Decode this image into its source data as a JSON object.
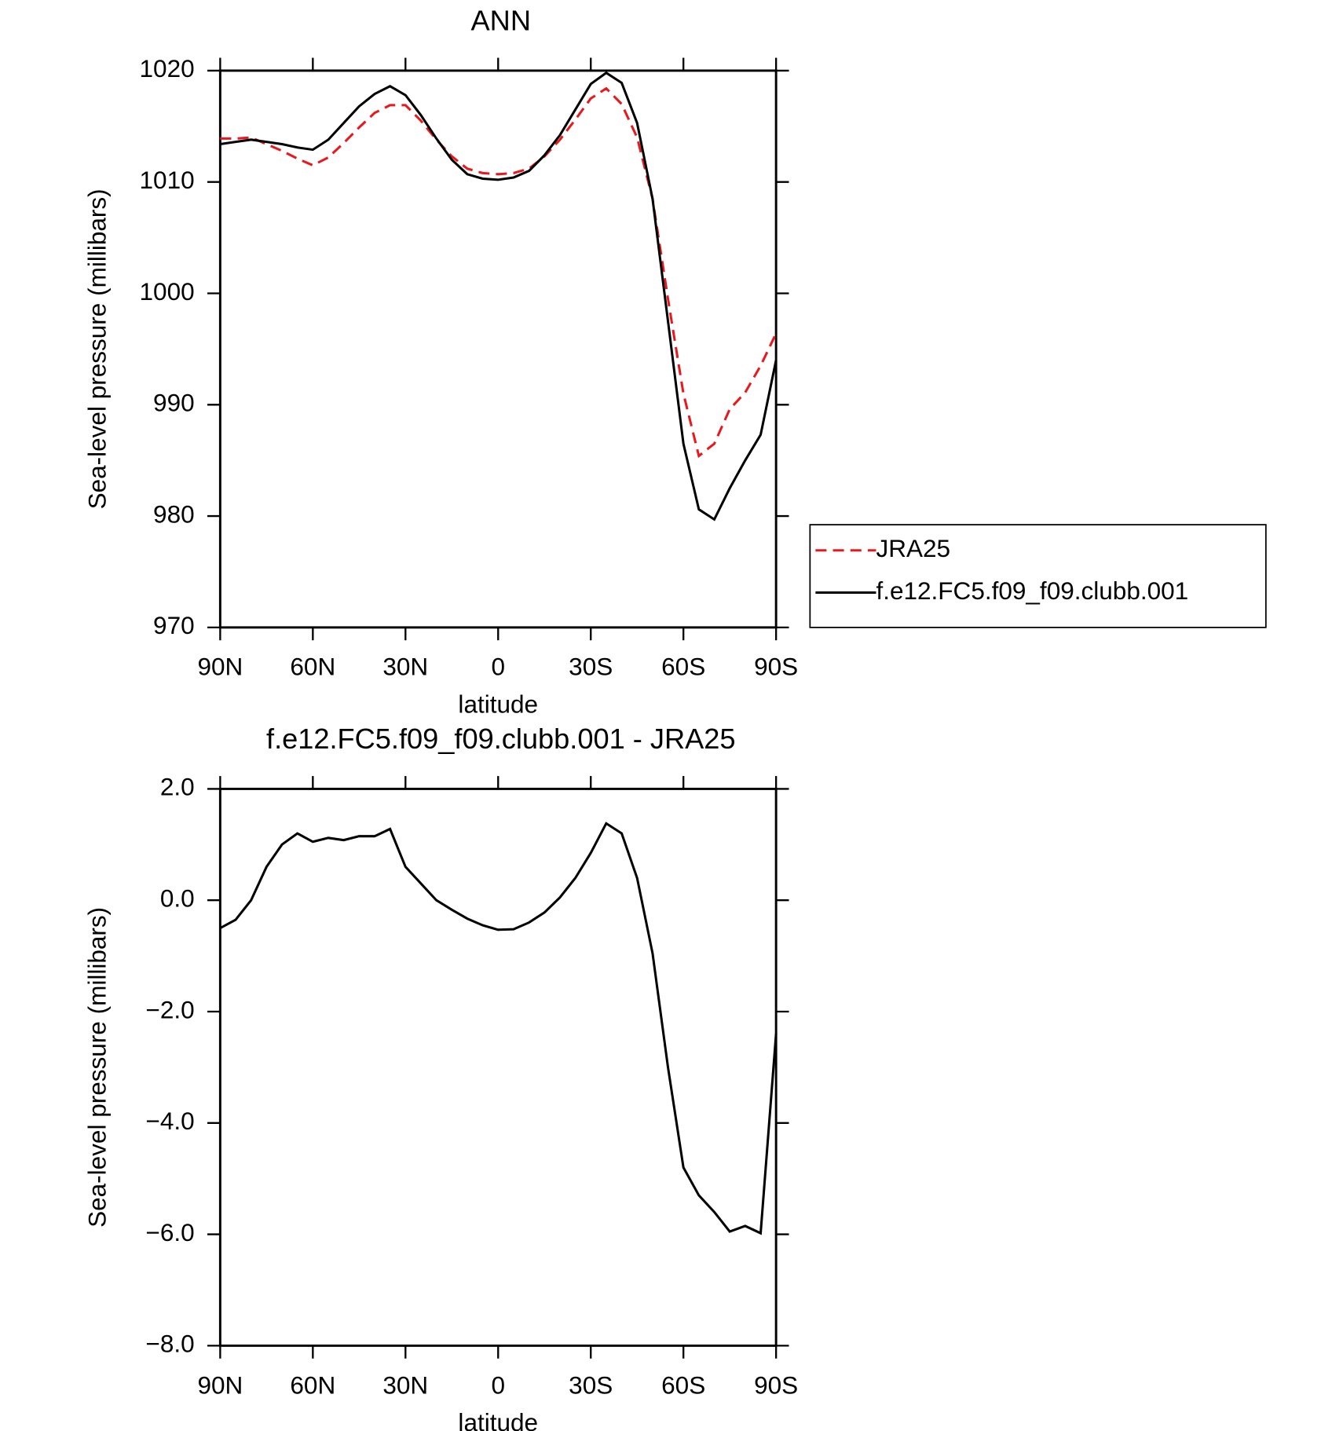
{
  "chart_data": [
    {
      "type": "line",
      "title": "ANN",
      "x_label": "latitude",
      "y_label": "Sea-level pressure (millibars)",
      "x": [
        90,
        85,
        80,
        75,
        70,
        65,
        60,
        55,
        50,
        45,
        40,
        35,
        30,
        25,
        20,
        15,
        10,
        5,
        0,
        -5,
        -10,
        -15,
        -20,
        -25,
        -30,
        -35,
        -40,
        -45,
        -50,
        -55,
        -60,
        -65,
        -70,
        -75,
        -80,
        -85,
        -90
      ],
      "series": [
        {
          "name": "JRA25",
          "color": "#e8191d",
          "line_style": "dashed",
          "values": [
            1013.9,
            1013.9,
            1014.0,
            1013.4,
            1012.8,
            1012.1,
            1011.5,
            1012.2,
            1013.5,
            1014.9,
            1016.2,
            1016.9,
            1016.9,
            1015.5,
            1013.8,
            1012.3,
            1011.2,
            1010.8,
            1010.7,
            1010.8,
            1011.2,
            1012.3,
            1013.8,
            1015.6,
            1017.5,
            1018.4,
            1017.0,
            1014.0,
            1008.5,
            999.5,
            991.0,
            985.4,
            986.5,
            989.6,
            991.1,
            993.5,
            996.4
          ]
        },
        {
          "name": "f.e12.FC5.f09_f09.clubb.001",
          "color": "#000000",
          "line_style": "solid",
          "values": [
            1013.4,
            1013.6,
            1013.8,
            1013.6,
            1013.4,
            1013.1,
            1012.9,
            1013.8,
            1015.3,
            1016.8,
            1017.9,
            1018.6,
            1017.8,
            1016.0,
            1013.9,
            1012.0,
            1010.7,
            1010.3,
            1010.2,
            1010.4,
            1011.0,
            1012.4,
            1014.2,
            1016.5,
            1018.8,
            1019.8,
            1018.9,
            1015.3,
            1008.5,
            997.5,
            986.5,
            980.6,
            979.7,
            982.5,
            985.0,
            987.3,
            994.0
          ]
        }
      ],
      "xlim": [
        90,
        -90
      ],
      "xticks": [
        {
          "value": 90,
          "label": "90N"
        },
        {
          "value": 60,
          "label": "60N"
        },
        {
          "value": 30,
          "label": "30N"
        },
        0,
        {
          "value": -30,
          "label": "30S"
        },
        {
          "value": -60,
          "label": "60S"
        },
        {
          "value": -90,
          "label": "90S"
        }
      ],
      "ylim": [
        970,
        1020
      ],
      "yticks": [
        970,
        980,
        990,
        1000,
        1010,
        1020
      ],
      "legend": "right"
    },
    {
      "type": "line",
      "title": "f.e12.FC5.f09_f09.clubb.001 - JRA25",
      "x_label": "latitude",
      "y_label": "Sea-level pressure (millibars)",
      "x": [
        90,
        85,
        80,
        75,
        70,
        65,
        60,
        55,
        50,
        45,
        40,
        35,
        30,
        25,
        20,
        15,
        10,
        5,
        0,
        -5,
        -10,
        -15,
        -20,
        -25,
        -30,
        -35,
        -40,
        -45,
        -50,
        -55,
        -60,
        -65,
        -70,
        -75,
        -80,
        -85,
        -90
      ],
      "color": "#000000",
      "values": [
        -0.5,
        -0.35,
        0.0,
        0.6,
        1.0,
        1.2,
        1.05,
        1.12,
        1.08,
        1.15,
        1.15,
        1.28,
        0.6,
        0.3,
        0.0,
        -0.17,
        -0.33,
        -0.45,
        -0.53,
        -0.52,
        -0.4,
        -0.22,
        0.05,
        0.4,
        0.85,
        1.38,
        1.2,
        0.4,
        -0.95,
        -3.0,
        -4.8,
        -5.3,
        -5.6,
        -5.95,
        -5.85,
        -5.98,
        -2.4
      ],
      "xlim": [
        90,
        -90
      ],
      "xticks": [
        {
          "value": 90,
          "label": "90N"
        },
        {
          "value": 60,
          "label": "60N"
        },
        {
          "value": 30,
          "label": "30N"
        },
        0,
        {
          "value": -30,
          "label": "30S"
        },
        {
          "value": -60,
          "label": "60S"
        },
        {
          "value": -90,
          "label": "90S"
        }
      ],
      "ylim": [
        -8,
        2
      ],
      "yticks": [
        {
          "value": -8,
          "label": "−8.0"
        },
        {
          "value": -6,
          "label": "−6.0"
        },
        {
          "value": -4,
          "label": "−4.0"
        },
        {
          "value": -2,
          "label": "−2.0"
        },
        {
          "value": 0,
          "label": "0.0"
        },
        {
          "value": 2,
          "label": "2.0"
        }
      ]
    }
  ]
}
